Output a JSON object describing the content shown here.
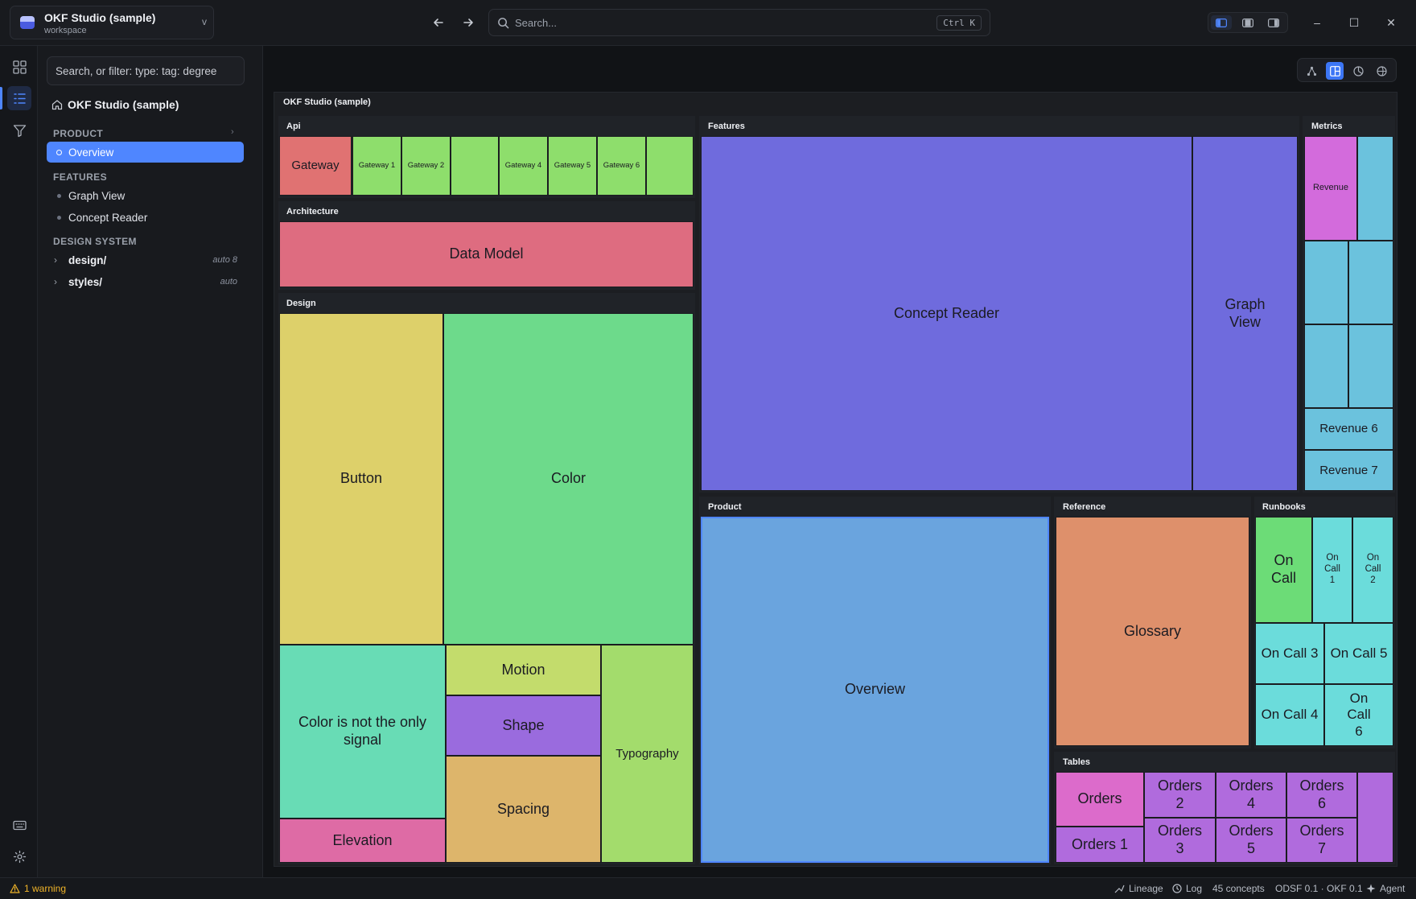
{
  "workspace": {
    "name": "OKF Studio (sample)",
    "subtitle": "workspace",
    "chevron": "v"
  },
  "header": {
    "search_placeholder": "Search...",
    "search_shortcut": "Ctrl K",
    "back_icon": "arrow-left-icon",
    "forward_icon": "arrow-right-icon",
    "window": {
      "minimize": "–",
      "maximize": "☐",
      "close": "✕"
    }
  },
  "rail": {
    "items": [
      "dashboard-icon",
      "outline-icon",
      "filter-icon"
    ],
    "bottom": [
      "keyboard-icon",
      "settings-icon"
    ]
  },
  "sidebar": {
    "filter_placeholder": "Search, or filter: type: tag: degree",
    "root": "OKF Studio (sample)",
    "sections": [
      {
        "title": "PRODUCT",
        "items": [
          "Overview"
        ]
      },
      {
        "title": "FEATURES",
        "items": [
          "Graph View",
          "Concept Reader"
        ]
      },
      {
        "title": "DESIGN SYSTEM",
        "folders": [
          {
            "name": "design/",
            "meta": "auto 8"
          },
          {
            "name": "styles/",
            "meta": "auto"
          }
        ]
      }
    ]
  },
  "treemap": {
    "title": "OKF Studio (sample)",
    "groups": {
      "api": "Api",
      "architecture": "Architecture",
      "design": "Design",
      "features": "Features",
      "metrics": "Metrics",
      "product": "Product",
      "reference": "Reference",
      "runbooks": "Runbooks",
      "tables": "Tables"
    },
    "cells": {
      "gateway": "Gateway",
      "gateway1": "Gateway 1",
      "gateway2": "Gateway 2",
      "gateway4": "Gateway 4",
      "gateway5": "Gateway 5",
      "gateway6": "Gateway 6",
      "data_model": "Data Model",
      "button": "Button",
      "color": "Color",
      "color_signal": "Color is not the only signal",
      "elevation": "Elevation",
      "motion": "Motion",
      "shape": "Shape",
      "spacing": "Spacing",
      "typography": "Typography",
      "concept_reader": "Concept Reader",
      "graph_view": "Graph View",
      "revenue": "Revenue",
      "revenue6": "Revenue 6",
      "revenue7": "Revenue 7",
      "overview": "Overview",
      "glossary": "Glossary",
      "on_call": "On Call",
      "on_call1": "On Call 1",
      "on_call2": "On Call 2",
      "on_call3": "On Call 3",
      "on_call4": "On Call 4",
      "on_call5": "On Call 5",
      "on_call6": "On Call 6",
      "orders": "Orders",
      "orders1": "Orders 1",
      "orders2": "Orders 2",
      "orders3": "Orders 3",
      "orders4": "Orders 4",
      "orders5": "Orders 5",
      "orders6": "Orders 6",
      "orders7": "Orders 7"
    },
    "colors": {
      "api_red": "#e07272",
      "api_green": "#8ede6c",
      "architecture": "#de6c80",
      "design_yellow": "#ddd06a",
      "design_green": "#6dda8b",
      "design_teal": "#68dcb5",
      "design_pink": "#de6ba5",
      "design_lime": "#c3dc6c",
      "design_purple": "#9a6bde",
      "design_orange": "#ddb56b",
      "design_lime2": "#a3dc6c",
      "features": "#6f6bdd",
      "metrics_magenta": "#d36bdc",
      "metrics_cyan": "#6bc2dd",
      "product": "#6aa4de",
      "reference": "#de906b",
      "runbooks_green": "#6cdc77",
      "runbooks_cyan": "#6bdcdb",
      "tables_pink": "#dc6bcb",
      "tables_purple": "#b06bdd",
      "selection": "#4f86ff"
    }
  },
  "view_toggle": {
    "items": [
      "graph-icon",
      "treemap-icon",
      "radial-icon",
      "globe-icon"
    ],
    "active": "treemap-icon"
  },
  "statusbar": {
    "warning": "1 warning",
    "lineage": "Lineage",
    "log": "Log",
    "concepts": "45 concepts",
    "version": "ODSF 0.1 · OKF 0.1",
    "agent": "Agent"
  }
}
